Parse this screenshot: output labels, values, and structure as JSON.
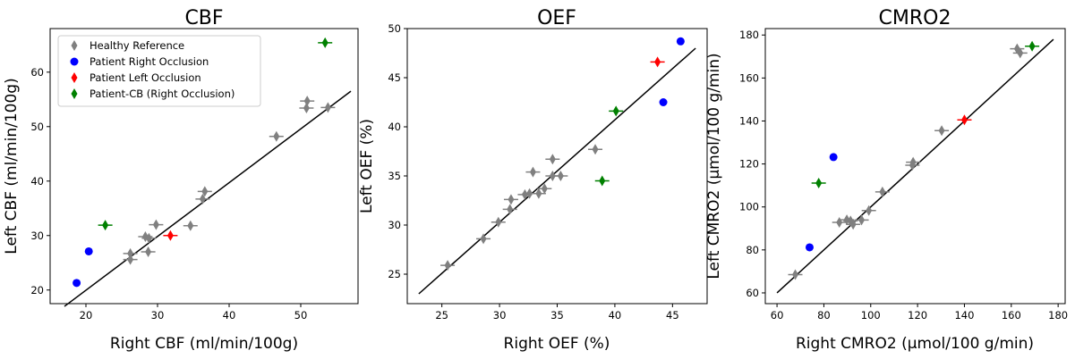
{
  "colors": {
    "healthy": "#808080",
    "patient_right": "#0000ff",
    "patient_left": "#ff0000",
    "patient_cb": "#008000",
    "identity_line": "#000000"
  },
  "chart_data": [
    {
      "type": "scatter",
      "title": "CBF",
      "xlabel": "Right CBF (ml/min/100g)",
      "ylabel": "Left CBF (ml/min/100g)",
      "xlim": [
        15,
        58
      ],
      "ylim": [
        17.5,
        68
      ],
      "xticks": [
        20,
        30,
        40,
        50
      ],
      "yticks": [
        20,
        30,
        40,
        50,
        60
      ],
      "line": [
        [
          17,
          17
        ],
        [
          57,
          56.5
        ]
      ],
      "legend_position": "top-left",
      "series": [
        {
          "name": "Healthy Reference",
          "marker": "diamond",
          "color": "healthy",
          "points": [
            [
              26.2,
              26.7
            ],
            [
              26.2,
              25.6
            ],
            [
              28.3,
              29.8
            ],
            [
              28.7,
              27
            ],
            [
              28.8,
              29.5
            ],
            [
              29.8,
              32
            ],
            [
              34.6,
              31.8
            ],
            [
              36.3,
              36.7
            ],
            [
              36.6,
              38.1
            ],
            [
              46.6,
              48.2
            ],
            [
              50.8,
              53.4
            ],
            [
              50.9,
              54.7
            ],
            [
              53.8,
              53.5
            ]
          ]
        },
        {
          "name": "Patient Right Occlusion",
          "marker": "circle",
          "color": "patient_right",
          "points": [
            [
              18.7,
              21.3
            ],
            [
              20.4,
              27.1
            ]
          ]
        },
        {
          "name": "Patient Left Occlusion",
          "marker": "diamond",
          "color": "patient_left",
          "points": [
            [
              31.8,
              30.0
            ]
          ]
        },
        {
          "name": "Patient-CB (Right Occlusion)",
          "marker": "diamond",
          "color": "patient_cb",
          "points": [
            [
              22.7,
              31.9
            ],
            [
              53.4,
              65.4
            ]
          ]
        }
      ]
    },
    {
      "type": "scatter",
      "title": "OEF",
      "xlabel": "Right OEF (%)",
      "ylabel": "Left OEF (%)",
      "xlim": [
        22,
        48
      ],
      "ylim": [
        22,
        50
      ],
      "xticks": [
        25,
        30,
        35,
        40,
        45
      ],
      "yticks": [
        25,
        30,
        35,
        40,
        45,
        50
      ],
      "line": [
        [
          23,
          23
        ],
        [
          47,
          48
        ]
      ],
      "series": [
        {
          "name": "Healthy Reference",
          "marker": "diamond",
          "color": "healthy",
          "points": [
            [
              25.5,
              25.9
            ],
            [
              28.6,
              28.6
            ],
            [
              29.9,
              30.3
            ],
            [
              30.9,
              31.6
            ],
            [
              31.0,
              32.6
            ],
            [
              32.2,
              33.1
            ],
            [
              32.6,
              33.2
            ],
            [
              32.9,
              35.4
            ],
            [
              33.4,
              33.2
            ],
            [
              33.9,
              33.7
            ],
            [
              34.6,
              36.7
            ],
            [
              34.6,
              35.0
            ],
            [
              35.3,
              35.0
            ],
            [
              38.3,
              37.7
            ]
          ]
        },
        {
          "name": "Patient Right Occlusion",
          "marker": "circle",
          "color": "patient_right",
          "points": [
            [
              44.2,
              42.5
            ],
            [
              45.7,
              48.7
            ]
          ]
        },
        {
          "name": "Patient Left Occlusion",
          "marker": "diamond",
          "color": "patient_left",
          "points": [
            [
              43.7,
              46.6
            ]
          ]
        },
        {
          "name": "Patient-CB (Right Occlusion)",
          "marker": "diamond",
          "color": "patient_cb",
          "points": [
            [
              38.9,
              34.5
            ],
            [
              40.1,
              41.6
            ]
          ]
        }
      ]
    },
    {
      "type": "scatter",
      "title": "CMRO2",
      "xlabel": "Right CMRO2 (μmol/100 g/min)",
      "ylabel": "Left CMRO2 (μmol/100 g/min)",
      "xlim": [
        55,
        183
      ],
      "ylim": [
        55,
        183
      ],
      "xticks": [
        60,
        80,
        100,
        120,
        140,
        160,
        180
      ],
      "yticks": [
        60,
        80,
        100,
        120,
        140,
        160,
        180
      ],
      "line": [
        [
          60,
          60
        ],
        [
          178,
          178
        ]
      ],
      "series": [
        {
          "name": "Healthy Reference",
          "marker": "diamond",
          "color": "healthy",
          "points": [
            [
              67.8,
              68.5
            ],
            [
              86.6,
              92.8
            ],
            [
              89.8,
              94.0
            ],
            [
              91.4,
              93.5
            ],
            [
              92.5,
              91.9
            ],
            [
              96.1,
              93.9
            ],
            [
              99.2,
              98.3
            ],
            [
              105,
              107
            ],
            [
              117.8,
              119.4
            ],
            [
              118.1,
              120.8
            ],
            [
              130.3,
              135.5
            ],
            [
              162.5,
              173.6
            ],
            [
              163.8,
              171.6
            ]
          ]
        },
        {
          "name": "Patient Right Occlusion",
          "marker": "circle",
          "color": "patient_right",
          "points": [
            [
              73.9,
              81.2
            ],
            [
              84.1,
              123.2
            ]
          ]
        },
        {
          "name": "Patient Left Occlusion",
          "marker": "diamond",
          "color": "patient_left",
          "points": [
            [
              140,
              140.5
            ]
          ]
        },
        {
          "name": "Patient-CB (Right Occlusion)",
          "marker": "diamond",
          "color": "patient_cb",
          "points": [
            [
              77.8,
              111.1
            ],
            [
              168.9,
              174.8
            ]
          ]
        }
      ]
    }
  ]
}
